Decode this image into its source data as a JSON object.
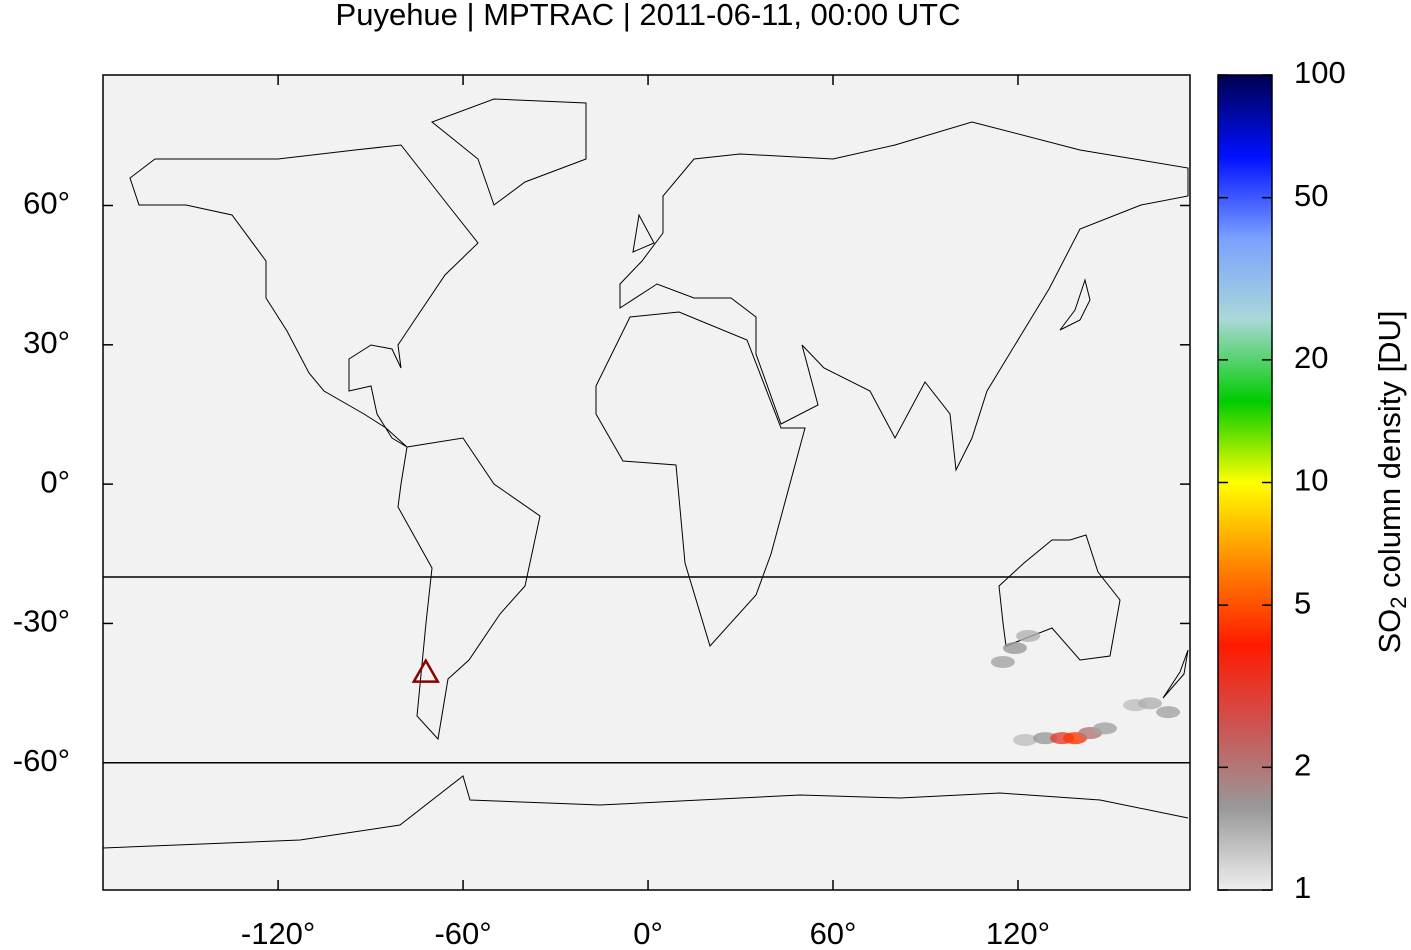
{
  "chart_data": {
    "type": "map",
    "title": "Puyehue | MPTRAC | 2011-06-11, 00:00 UTC",
    "xlim": [
      -176.8,
      175.8
    ],
    "ylim": [
      -87.4,
      88.1
    ],
    "xticks": [
      {
        "value": -120,
        "label": "-120°"
      },
      {
        "value": -60,
        "label": "-60°"
      },
      {
        "value": 0,
        "label": "0°"
      },
      {
        "value": 60,
        "label": "60°"
      },
      {
        "value": 120,
        "label": "120°"
      }
    ],
    "yticks": [
      {
        "value": 60,
        "label": "60°"
      },
      {
        "value": 30,
        "label": "30°"
      },
      {
        "value": 0,
        "label": "0°"
      },
      {
        "value": -30,
        "label": "-30°"
      },
      {
        "value": -60,
        "label": "-60°"
      }
    ],
    "hlines": [
      -20,
      -60
    ],
    "volcano": {
      "lon": -72.1,
      "lat": -40.6,
      "color": "#8b0000"
    },
    "plume": {
      "lon": [
        115.1,
        119.0,
        123.3,
        122.3,
        128.8,
        134.3,
        138.5,
        143.4,
        148.2,
        158.0,
        162.8,
        168.7
      ],
      "lat": [
        -38.3,
        -35.3,
        -32.7,
        -55.1,
        -54.7,
        -54.7,
        -54.7,
        -53.6,
        -52.6,
        -47.6,
        -47.2,
        -49.1
      ],
      "values": [
        1.5,
        1.6,
        1.4,
        1.3,
        1.6,
        3.0,
        4.5,
        2.0,
        1.5,
        1.3,
        1.4,
        1.5
      ]
    },
    "colorbar": {
      "label": "SO",
      "label_sub": "2",
      "label_rest": " column density [DU]",
      "lim": [
        1,
        100
      ],
      "ticks": [
        1,
        2,
        5,
        10,
        20,
        50,
        100
      ],
      "log": true,
      "colormap": [
        "#eeeeee",
        "#999999",
        "#cc5555",
        "#ff1a00",
        "#ff8800",
        "#ffff00",
        "#00cc00",
        "#aad8d8",
        "#7aa0ff",
        "#0010ff",
        "#000050"
      ]
    }
  }
}
